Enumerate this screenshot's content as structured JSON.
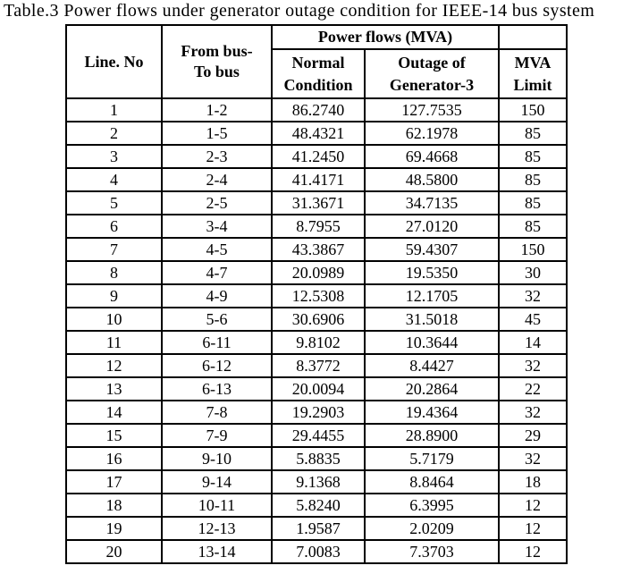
{
  "title": "Table.3 Power flows under generator outage condition for IEEE-14 bus system",
  "table": {
    "header": {
      "line_no": "Line. No",
      "from_to": "From bus-\nTo bus",
      "power_flows_group": "Power flows (MVA)",
      "mva_limit_top_spacer": "",
      "normal": "Normal\nCondition",
      "outage": "Outage of\nGenerator-3",
      "mva_limit": "MVA\nLimit"
    },
    "columns": [
      "Line. No",
      "From bus-To bus",
      "Normal Condition",
      "Outage of Generator-3",
      "MVA Limit"
    ],
    "rows": [
      [
        "1",
        "1-2",
        "86.2740",
        "127.7535",
        "150"
      ],
      [
        "2",
        "1-5",
        "48.4321",
        "62.1978",
        "85"
      ],
      [
        "3",
        "2-3",
        "41.2450",
        "69.4668",
        "85"
      ],
      [
        "4",
        "2-4",
        "41.4171",
        "48.5800",
        "85"
      ],
      [
        "5",
        "2-5",
        "31.3671",
        "34.7135",
        "85"
      ],
      [
        "6",
        "3-4",
        "8.7955",
        "27.0120",
        "85"
      ],
      [
        "7",
        "4-5",
        "43.3867",
        "59.4307",
        "150"
      ],
      [
        "8",
        "4-7",
        "20.0989",
        "19.5350",
        "30"
      ],
      [
        "9",
        "4-9",
        "12.5308",
        "12.1705",
        "32"
      ],
      [
        "10",
        "5-6",
        "30.6906",
        "31.5018",
        "45"
      ],
      [
        "11",
        "6-11",
        "9.8102",
        "10.3644",
        "14"
      ],
      [
        "12",
        "6-12",
        "8.3772",
        "8.4427",
        "32"
      ],
      [
        "13",
        "6-13",
        "20.0094",
        "20.2864",
        "22"
      ],
      [
        "14",
        "7-8",
        "19.2903",
        "19.4364",
        "32"
      ],
      [
        "15",
        "7-9",
        "29.4455",
        "28.8900",
        "29"
      ],
      [
        "16",
        "9-10",
        "5.8835",
        "5.7179",
        "32"
      ],
      [
        "17",
        "9-14",
        "9.1368",
        "8.8464",
        "18"
      ],
      [
        "18",
        "10-11",
        "5.8240",
        "6.3995",
        "12"
      ],
      [
        "19",
        "12-13",
        "1.9587",
        "2.0209",
        "12"
      ],
      [
        "20",
        "13-14",
        "7.0083",
        "7.3703",
        "12"
      ]
    ]
  },
  "colors": {
    "text": "#000000",
    "background": "#ffffff",
    "border": "#000000"
  }
}
